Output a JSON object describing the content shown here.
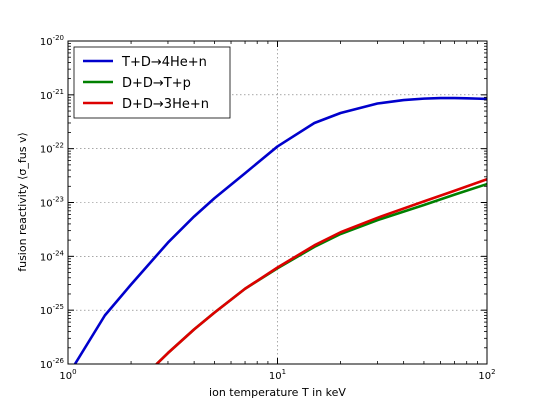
{
  "chart_data": {
    "type": "line",
    "title": "",
    "xlabel": "ion temperature T in keV",
    "ylabel": "fusion reactivity ⟨σ_fus v⟩",
    "xscale": "log",
    "yscale": "log",
    "xlim": [
      1,
      100
    ],
    "ylim": [
      1e-26,
      1e-20
    ],
    "grid": true,
    "legend_position": "top-left",
    "x_ticks": [
      {
        "base": "10",
        "exp": "0"
      },
      {
        "base": "10",
        "exp": "1"
      },
      {
        "base": "10",
        "exp": "2"
      }
    ],
    "y_ticks": [
      {
        "base": "10",
        "exp": "-26"
      },
      {
        "base": "10",
        "exp": "-25"
      },
      {
        "base": "10",
        "exp": "-24"
      },
      {
        "base": "10",
        "exp": "-23"
      },
      {
        "base": "10",
        "exp": "-22"
      },
      {
        "base": "10",
        "exp": "-21"
      },
      {
        "base": "10",
        "exp": "-20"
      }
    ],
    "series": [
      {
        "name": "T+D→4He+n",
        "color": "#0000cc",
        "x": [
          1.08,
          1.5,
          2,
          3,
          4,
          5,
          7,
          10,
          15,
          20,
          30,
          40,
          50,
          60,
          70,
          80,
          90,
          100
        ],
        "y": [
          1e-26,
          8e-26,
          3e-25,
          1.8e-24,
          5.5e-24,
          1.2e-23,
          3.5e-23,
          1.1e-22,
          3e-22,
          4.6e-22,
          6.9e-22,
          8e-22,
          8.5e-22,
          8.7e-22,
          8.7e-22,
          8.6e-22,
          8.5e-22,
          8.4e-22
        ]
      },
      {
        "name": "D+D→T+p",
        "color": "#008000",
        "x": [
          2.65,
          3,
          4,
          5,
          7,
          10,
          15,
          20,
          30,
          50,
          70,
          100
        ],
        "y": [
          1e-26,
          1.6e-26,
          4.4e-26,
          9e-26,
          2.5e-25,
          6e-25,
          1.5e-24,
          2.6e-24,
          4.7e-24,
          9e-24,
          1.4e-23,
          2.2e-23
        ]
      },
      {
        "name": "D+D→3He+n",
        "color": "#dd0000",
        "x": [
          2.65,
          3,
          4,
          5,
          7,
          10,
          15,
          20,
          30,
          50,
          70,
          100
        ],
        "y": [
          1e-26,
          1.6e-26,
          4.4e-26,
          9e-26,
          2.5e-25,
          6.2e-25,
          1.6e-24,
          2.8e-24,
          5.2e-24,
          1.05e-23,
          1.65e-23,
          2.7e-23
        ]
      }
    ]
  }
}
